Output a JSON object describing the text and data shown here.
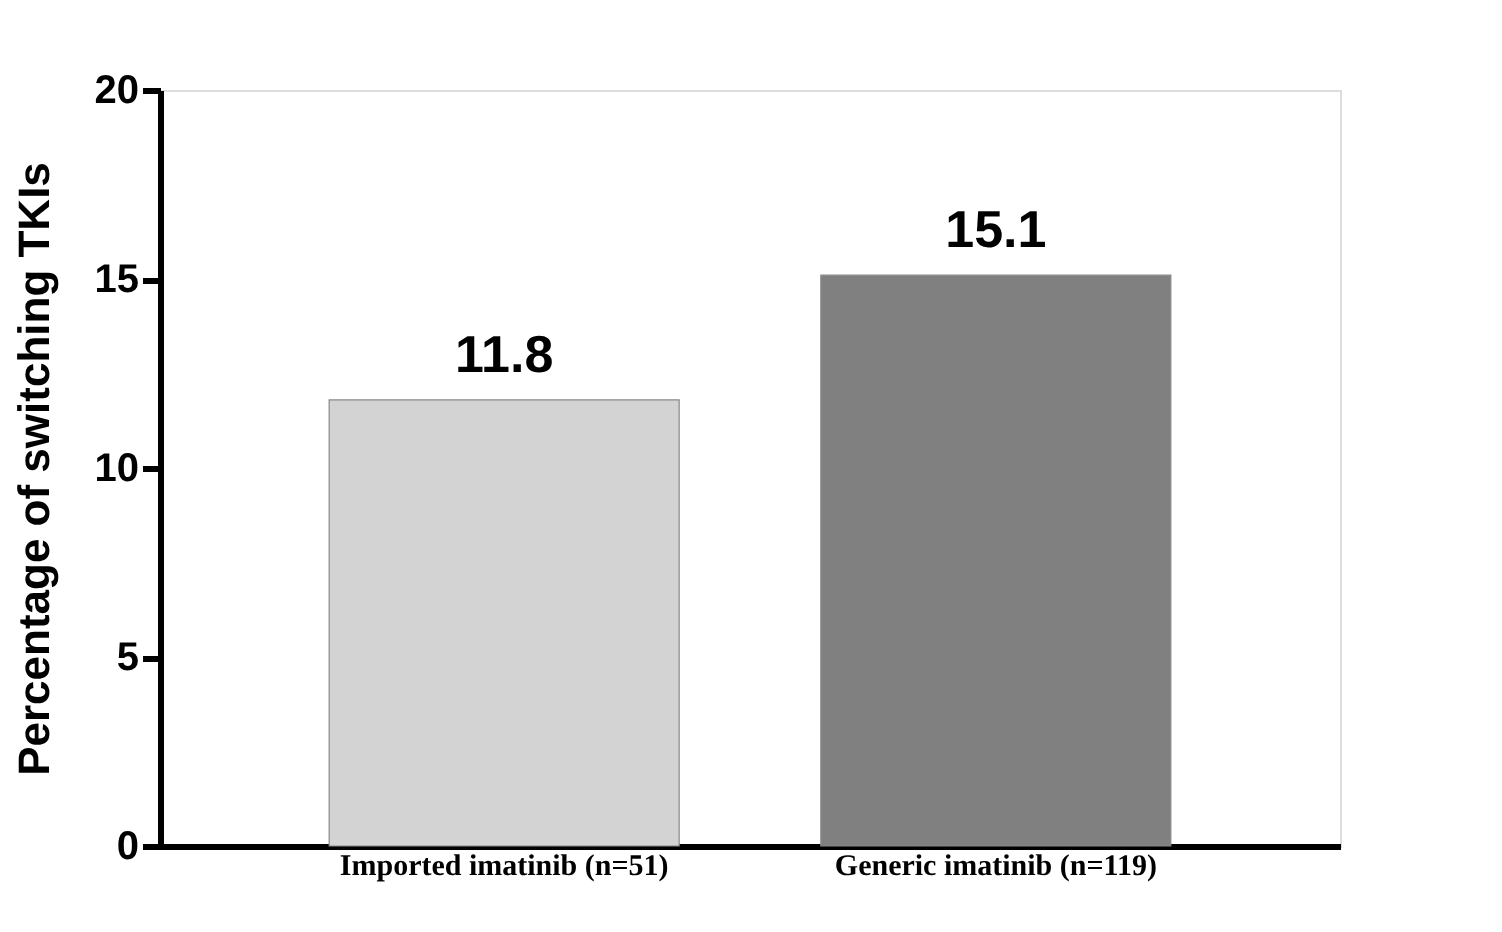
{
  "chart_data": {
    "type": "bar",
    "ylabel": "Percentage of switching TKIs",
    "categories": [
      "Imported imatinib (n=51)",
      "Generic imatinib (n=119)"
    ],
    "values": [
      11.8,
      15.1
    ],
    "colors": [
      "#d3d3d3",
      "#808080"
    ],
    "ylim": [
      0,
      20
    ],
    "yticks": [
      0,
      5,
      10,
      15,
      20
    ],
    "grid": false,
    "data_labels": true
  }
}
